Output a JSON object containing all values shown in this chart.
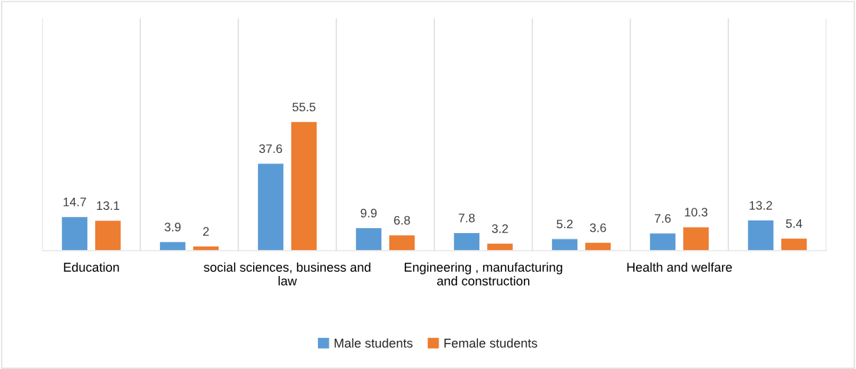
{
  "chart_data": {
    "type": "bar",
    "categories": [
      "Education",
      null,
      "social sciences, business and law",
      null,
      "Engineering , manufacturing and construction",
      null,
      "Health and welfare",
      null
    ],
    "series": [
      {
        "name": "Male students",
        "color": "#5b9bd5",
        "values": [
          14.7,
          3.9,
          37.6,
          9.9,
          7.8,
          5.2,
          7.6,
          13.2
        ]
      },
      {
        "name": "Female students",
        "color": "#ed7d31",
        "values": [
          13.1,
          2,
          55.5,
          6.8,
          3.2,
          3.6,
          10.3,
          5.4
        ]
      }
    ],
    "data_labels": true,
    "grid": "x",
    "legend": "bottom"
  }
}
